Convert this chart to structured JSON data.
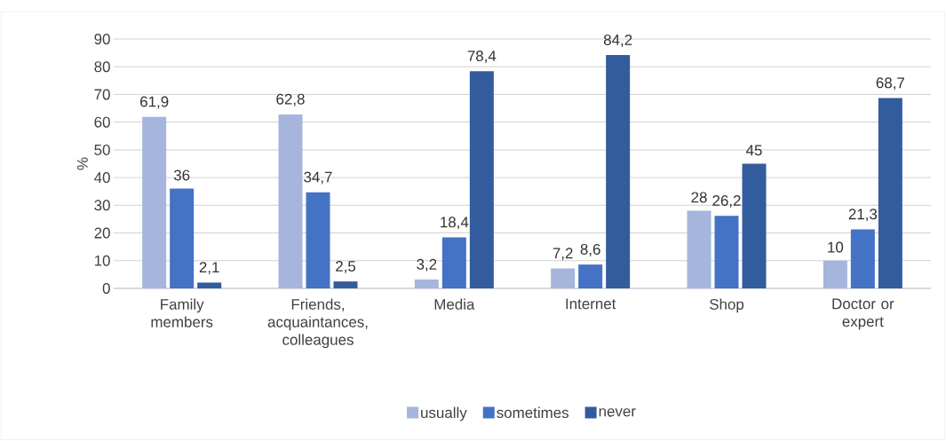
{
  "chart_data": {
    "type": "bar",
    "ylabel": "%",
    "categories": [
      "Family members",
      "Friends, acquaintances, colleagues",
      "Media",
      "Internet",
      "Shop",
      "Doctor or expert"
    ],
    "series": [
      {
        "name": "usually",
        "color": "#a5b5dc",
        "values": [
          61.9,
          62.8,
          3.2,
          7.2,
          28,
          10
        ],
        "value_labels": [
          "61,9",
          "62,8",
          "3,2",
          "7,2",
          "28",
          "10"
        ]
      },
      {
        "name": "sometimes",
        "color": "#4472c4",
        "values": [
          36,
          34.7,
          18.4,
          8.6,
          26.2,
          21.3
        ],
        "value_labels": [
          "36",
          "34,7",
          "18,4",
          "8,6",
          "26,2",
          "21,3"
        ]
      },
      {
        "name": "never",
        "color": "#335c9f",
        "values": [
          2.1,
          2.5,
          78.4,
          84.2,
          45,
          68.7
        ],
        "value_labels": [
          "2,1",
          "2,5",
          "78,4",
          "84,2",
          "45",
          "68,7"
        ]
      }
    ],
    "ylim": [
      0,
      90
    ],
    "yticks": [
      0,
      10,
      20,
      30,
      40,
      50,
      60,
      70,
      80,
      90
    ],
    "grid": "y",
    "legend": "bottom"
  }
}
